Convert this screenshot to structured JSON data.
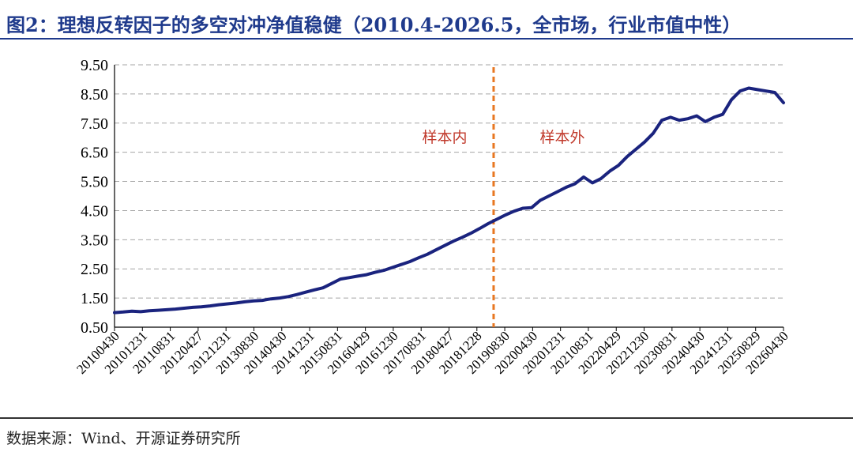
{
  "title": "图2：理想反转因子的多空对冲净值稳健（2010.4-2026.5，全市场，行业市值中性）",
  "source": "数据来源：Wind、开源证券研究所",
  "colors": {
    "title": "#1f3a8c",
    "line": "#1a237e",
    "divider": "#e87722",
    "annotation": "#c0392b",
    "grid": "#a6a6a6"
  },
  "chart_data": {
    "type": "line",
    "ylim": [
      0.5,
      9.5
    ],
    "yticks": [
      "0.50",
      "1.50",
      "2.50",
      "3.50",
      "4.50",
      "5.50",
      "6.50",
      "7.50",
      "8.50",
      "9.50"
    ],
    "grid": "horizontal-dashed",
    "xtick_labels": [
      "20100430",
      "20101231",
      "20110831",
      "20120427",
      "20121231",
      "20130830",
      "20140430",
      "20141231",
      "20150831",
      "20160429",
      "20161230",
      "20170831",
      "20180427",
      "20181228",
      "20190830",
      "20200430",
      "20201231",
      "20210831",
      "20220429",
      "20221230",
      "20230831",
      "20240430",
      "20241231",
      "20250829",
      "20260430"
    ],
    "divider_label_left": "样本内",
    "divider_label_right": "样本外",
    "series": [
      {
        "values": [
          1.0,
          1.02,
          1.05,
          1.03,
          1.06,
          1.08,
          1.1,
          1.12,
          1.15,
          1.18,
          1.2,
          1.23,
          1.27,
          1.3,
          1.33,
          1.37,
          1.4,
          1.42,
          1.47,
          1.5,
          1.55,
          1.62,
          1.7,
          1.78,
          1.85,
          2.0,
          2.15,
          2.2,
          2.25,
          2.3,
          2.38,
          2.45,
          2.55,
          2.65,
          2.75,
          2.88,
          3.0,
          3.15,
          3.3,
          3.45,
          3.58,
          3.72,
          3.88,
          4.05,
          4.2,
          4.35,
          4.48,
          4.58,
          4.6,
          4.85,
          5.0,
          5.15,
          5.3,
          5.42,
          5.65,
          5.45,
          5.6,
          5.85,
          6.05,
          6.35,
          6.6,
          6.85,
          7.15,
          7.6,
          7.7,
          7.6,
          7.65,
          7.75,
          7.55,
          7.7,
          7.8,
          8.3,
          8.6,
          8.7,
          8.65,
          8.6,
          8.55,
          8.2
        ]
      }
    ]
  }
}
